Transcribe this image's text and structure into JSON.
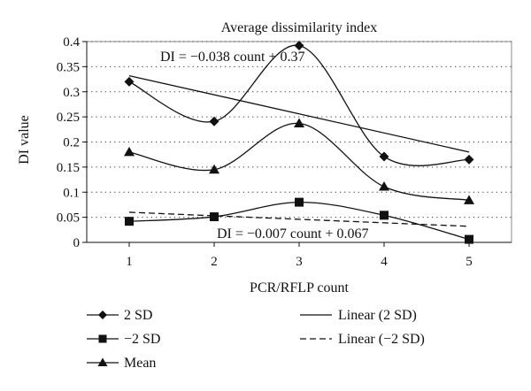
{
  "chart_data": {
    "type": "line",
    "title": "Average dissimilarity index",
    "xlabel": "PCR/RFLP count",
    "ylabel": "DI value",
    "x": [
      1,
      2,
      3,
      4,
      5
    ],
    "xticks": [
      "1",
      "2",
      "3",
      "4",
      "5"
    ],
    "ylim": [
      0,
      0.4
    ],
    "yticks": [
      "0",
      "0.05",
      "0.1",
      "0.15",
      "0.2",
      "0.25",
      "0.3",
      "0.35",
      "0.4"
    ],
    "grid": "horizontal dotted",
    "series": [
      {
        "name": "2 SD",
        "marker": "diamond",
        "values": [
          0.32,
          0.241,
          0.392,
          0.171,
          0.165
        ]
      },
      {
        "name": "−2 SD",
        "marker": "square",
        "values": [
          0.042,
          0.051,
          0.08,
          0.054,
          0.006
        ]
      },
      {
        "name": "Mean",
        "marker": "triangle",
        "values": [
          0.18,
          0.145,
          0.237,
          0.111,
          0.084
        ]
      }
    ],
    "trendlines": [
      {
        "name": "Linear (2 SD)",
        "style": "solid",
        "slope": -0.038,
        "intercept": 0.37,
        "equation": "DI = −0.038 count + 0.37"
      },
      {
        "name": "Linear (−2 SD)",
        "style": "dashed",
        "slope": -0.007,
        "intercept": 0.067,
        "equation": "DI = −0.007 count + 0.067"
      }
    ],
    "legend": [
      "2 SD",
      "−2 SD",
      "Mean",
      "Linear (2 SD)",
      "Linear (−2 SD)"
    ],
    "legend_position": "bottom"
  }
}
